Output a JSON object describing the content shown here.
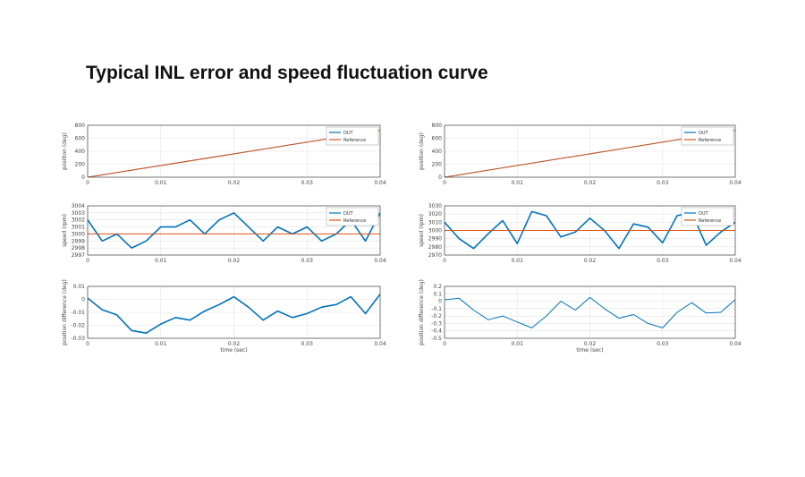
{
  "page": {
    "title": "Typical INL error and speed fluctuation curve"
  },
  "colors": {
    "dut": "#0072bd",
    "reference": "#d95319",
    "grid": "#e3e3e3",
    "axis": "#555555"
  },
  "chart_data": [
    {
      "type": "line",
      "xlabel": "",
      "ylabel": "position (deg)",
      "xlim": [
        0,
        0.04
      ],
      "ylim": [
        0,
        800
      ],
      "xticks": [
        "0",
        "0.01",
        "0.02",
        "0.03",
        "0.04"
      ],
      "yticks": [
        "0",
        "200",
        "400",
        "600",
        "800"
      ],
      "yticks_values": [
        0,
        200,
        400,
        600,
        800
      ],
      "legend": [
        "DUT",
        "Reference"
      ],
      "legend_position": "top-right",
      "grid": true,
      "series": [
        {
          "name": "DUT",
          "x": [
            0,
            0.04
          ],
          "y": [
            0,
            720
          ]
        },
        {
          "name": "Reference",
          "x": [
            0,
            0.04
          ],
          "y": [
            0,
            720
          ]
        }
      ]
    },
    {
      "type": "line",
      "xlabel": "",
      "ylabel": "speed (rpm)",
      "xlim": [
        0,
        0.04
      ],
      "ylim": [
        2997,
        3004
      ],
      "xticks": [
        "0",
        "0.01",
        "0.02",
        "0.03",
        "0.04"
      ],
      "yticks": [
        "2997",
        "2998",
        "2999",
        "3000",
        "3001",
        "3002",
        "3003",
        "3004"
      ],
      "yticks_values": [
        2997,
        2998,
        2999,
        3000,
        3001,
        3002,
        3003,
        3004
      ],
      "legend": [
        "DUT",
        "Reference"
      ],
      "legend_position": "top-right",
      "grid": true,
      "series": [
        {
          "name": "DUT",
          "x": [
            0,
            0.002,
            0.004,
            0.006,
            0.008,
            0.01,
            0.012,
            0.014,
            0.016,
            0.018,
            0.02,
            0.022,
            0.024,
            0.026,
            0.028,
            0.03,
            0.032,
            0.034,
            0.036,
            0.038,
            0.04
          ],
          "y": [
            3002,
            2999,
            3000,
            2998,
            2999,
            3001,
            3001,
            3002,
            3000,
            3002,
            3003,
            3001,
            2999,
            3001,
            3000,
            3001,
            2999,
            3000,
            3002,
            2999,
            3003
          ]
        },
        {
          "name": "Reference",
          "x": [
            0,
            0.04
          ],
          "y": [
            3000,
            3000
          ]
        }
      ]
    },
    {
      "type": "line",
      "xlabel": "time (sec)",
      "ylabel": "position difference (deg)",
      "xlim": [
        0,
        0.04
      ],
      "ylim": [
        -0.03,
        0.01
      ],
      "xticks": [
        "0",
        "0.01",
        "0.02",
        "0.03",
        "0.04"
      ],
      "yticks": [
        "-0.03",
        "-0.02",
        "-0.01",
        "0",
        "0.01"
      ],
      "yticks_values": [
        -0.03,
        -0.02,
        -0.01,
        0,
        0.01
      ],
      "grid": true,
      "series": [
        {
          "name": "DUT",
          "x": [
            0,
            0.002,
            0.004,
            0.006,
            0.008,
            0.01,
            0.012,
            0.014,
            0.016,
            0.018,
            0.02,
            0.022,
            0.024,
            0.026,
            0.028,
            0.03,
            0.032,
            0.034,
            0.036,
            0.038,
            0.04
          ],
          "y": [
            0.001,
            -0.008,
            -0.012,
            -0.024,
            -0.026,
            -0.019,
            -0.014,
            -0.016,
            -0.009,
            -0.004,
            0.002,
            -0.006,
            -0.016,
            -0.009,
            -0.014,
            -0.011,
            -0.006,
            -0.004,
            0.002,
            -0.011,
            0.004
          ]
        }
      ]
    },
    {
      "type": "line",
      "xlabel": "",
      "ylabel": "position (deg)",
      "xlim": [
        0,
        0.04
      ],
      "ylim": [
        0,
        800
      ],
      "xticks": [
        "0",
        "0.01",
        "0.02",
        "0.03",
        "0.04"
      ],
      "yticks": [
        "0",
        "200",
        "400",
        "600",
        "800"
      ],
      "yticks_values": [
        0,
        200,
        400,
        600,
        800
      ],
      "legend": [
        "DUT",
        "Reference"
      ],
      "legend_position": "top-right",
      "grid": true,
      "series": [
        {
          "name": "DUT",
          "x": [
            0,
            0.04
          ],
          "y": [
            0,
            720
          ]
        },
        {
          "name": "Reference",
          "x": [
            0,
            0.04
          ],
          "y": [
            0,
            720
          ]
        }
      ]
    },
    {
      "type": "line",
      "xlabel": "",
      "ylabel": "speed (rpm)",
      "xlim": [
        0,
        0.04
      ],
      "ylim": [
        2970,
        3030
      ],
      "xticks": [
        "0",
        "0.01",
        "0.02",
        "0.03",
        "0.04"
      ],
      "yticks": [
        "2970",
        "2980",
        "2990",
        "3000",
        "3010",
        "3020",
        "3030"
      ],
      "yticks_values": [
        2970,
        2980,
        2990,
        3000,
        3010,
        3020,
        3030
      ],
      "legend": [
        "DUT",
        "Reference"
      ],
      "legend_position": "top-right",
      "grid": true,
      "series": [
        {
          "name": "DUT",
          "x": [
            0,
            0.002,
            0.004,
            0.006,
            0.008,
            0.01,
            0.012,
            0.014,
            0.016,
            0.018,
            0.02,
            0.022,
            0.024,
            0.026,
            0.028,
            0.03,
            0.032,
            0.034,
            0.036,
            0.038,
            0.04
          ],
          "y": [
            3010,
            2990,
            2978,
            2996,
            3012,
            2984,
            3023,
            3018,
            2992,
            2998,
            3015,
            3000,
            2978,
            3008,
            3004,
            2985,
            3018,
            3022,
            2982,
            2998,
            3010
          ]
        },
        {
          "name": "Reference",
          "x": [
            0,
            0.04
          ],
          "y": [
            3000,
            3000
          ]
        }
      ]
    },
    {
      "type": "line",
      "xlabel": "time (sec)",
      "ylabel": "position difference (deg)",
      "xlim": [
        0,
        0.04
      ],
      "ylim": [
        -0.5,
        0.2
      ],
      "xticks": [
        "0",
        "0.01",
        "0.02",
        "0.03",
        "0.04"
      ],
      "yticks": [
        "-0.5",
        "-0.4",
        "-0.3",
        "-0.2",
        "-0.1",
        "0",
        "0.1",
        "0.2"
      ],
      "yticks_values": [
        -0.5,
        -0.4,
        -0.3,
        -0.2,
        -0.1,
        0,
        0.1,
        0.2
      ],
      "grid": true,
      "series": [
        {
          "name": "DUT",
          "x": [
            0,
            0.002,
            0.004,
            0.006,
            0.008,
            0.01,
            0.012,
            0.014,
            0.016,
            0.018,
            0.02,
            0.022,
            0.024,
            0.026,
            0.028,
            0.03,
            0.032,
            0.034,
            0.036,
            0.038,
            0.04
          ],
          "y": [
            0.02,
            0.04,
            -0.12,
            -0.25,
            -0.2,
            -0.28,
            -0.36,
            -0.2,
            0.0,
            -0.12,
            0.05,
            -0.1,
            -0.23,
            -0.18,
            -0.3,
            -0.36,
            -0.15,
            -0.02,
            -0.16,
            -0.15,
            0.02
          ]
        }
      ]
    }
  ]
}
